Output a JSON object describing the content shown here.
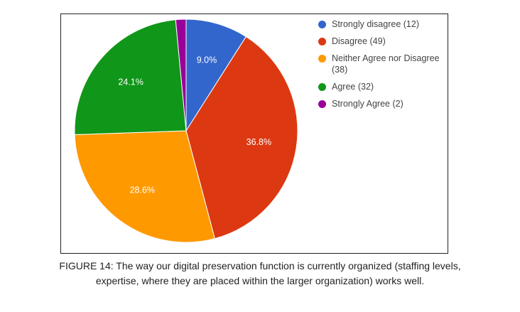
{
  "chart_data": {
    "type": "pie",
    "slices": [
      {
        "legend": "Strongly disagree (12)",
        "value": 12,
        "percent_label": "9.0%",
        "color": "#3366cc"
      },
      {
        "legend": "Disagree (49)",
        "value": 49,
        "percent_label": "36.8%",
        "color": "#dc3912"
      },
      {
        "legend": "Neither Agree nor Disagree (38)",
        "value": 38,
        "percent_label": "28.6%",
        "color": "#ff9900"
      },
      {
        "legend": "Agree (32)",
        "value": 32,
        "percent_label": "24.1%",
        "color": "#109618"
      },
      {
        "legend": "Strongly Agree (2)",
        "value": 2,
        "percent_label": "",
        "color": "#990099"
      }
    ],
    "legend_position": "right"
  },
  "caption": {
    "line1": "FIGURE 14: The way our digital preservation function is currently organized (staffing levels,",
    "line2": "expertise, where they are placed within the larger organization) works well."
  }
}
